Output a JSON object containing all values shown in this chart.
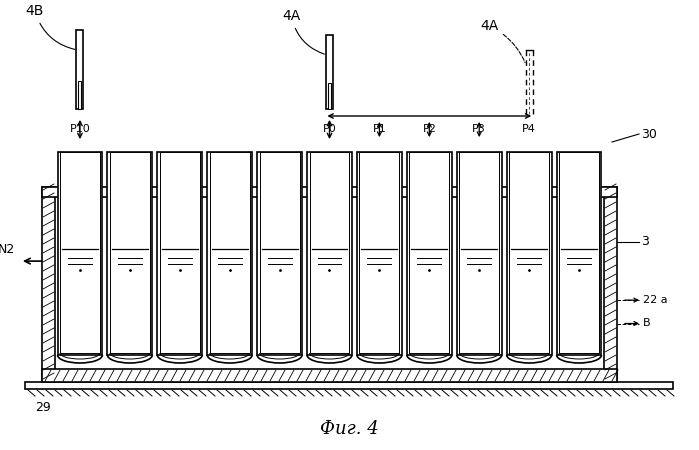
{
  "title": "Фиг. 4",
  "background": "#ffffff",
  "num_tubes": 11,
  "label_30": "30",
  "label_3": "3",
  "label_22a": "22 a",
  "label_B": "B",
  "label_N2": "N2",
  "label_29": "29",
  "label_4B": "4B",
  "label_4A_left": "4A",
  "label_4A_right": "4A"
}
